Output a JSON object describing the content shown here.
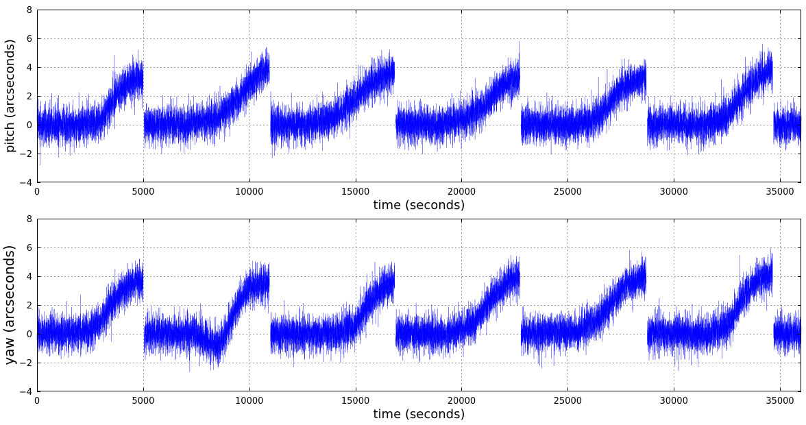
{
  "chart_data": [
    {
      "type": "line",
      "xlabel": "time (seconds)",
      "ylabel": "pitch (arcseconds)",
      "xlim": [
        0,
        36000
      ],
      "ylim": [
        -4,
        8
      ],
      "xticks": [
        0,
        5000,
        10000,
        15000,
        20000,
        25000,
        30000,
        35000
      ],
      "yticks": [
        -4,
        -2,
        0,
        2,
        4,
        6,
        8
      ],
      "grid": true,
      "line_color": "#0000ff",
      "noise_std_arcsec": 0.6,
      "segments": [
        {
          "start": 0,
          "end": 5000,
          "x": [
            0,
            2000,
            3000,
            3500,
            4000,
            4500,
            5000
          ],
          "y": [
            0,
            0,
            0.3,
            1.5,
            2.5,
            3.0,
            3.2
          ]
        },
        {
          "start": 5050,
          "end": 10950,
          "x": [
            5050,
            7000,
            8500,
            9500,
            10000,
            10500,
            10950
          ],
          "y": [
            0,
            0,
            0.5,
            1.8,
            2.8,
            3.5,
            4.0
          ]
        },
        {
          "start": 11000,
          "end": 16850,
          "x": [
            11000,
            13000,
            14000,
            15000,
            15500,
            16000,
            16850
          ],
          "y": [
            0,
            0,
            0.5,
            1.8,
            2.6,
            3.2,
            3.6
          ]
        },
        {
          "start": 16900,
          "end": 22750,
          "x": [
            16900,
            19000,
            20000,
            21000,
            21500,
            22000,
            22750
          ],
          "y": [
            0,
            0,
            0.3,
            1.2,
            2.0,
            2.8,
            3.2
          ]
        },
        {
          "start": 22800,
          "end": 28700,
          "x": [
            22800,
            25500,
            26500,
            27000,
            27500,
            28000,
            28700
          ],
          "y": [
            0,
            0,
            0.5,
            1.5,
            2.5,
            3.0,
            3.2
          ]
        },
        {
          "start": 28750,
          "end": 34650,
          "x": [
            28750,
            31500,
            32500,
            33000,
            33500,
            34000,
            34650
          ],
          "y": [
            0,
            0,
            0.6,
            1.6,
            2.6,
            3.3,
            3.8
          ]
        },
        {
          "start": 34700,
          "end": 36000,
          "x": [
            34700,
            36000
          ],
          "y": [
            0,
            0
          ]
        }
      ]
    },
    {
      "type": "line",
      "xlabel": "time (seconds)",
      "ylabel": "yaw (arcseconds)",
      "xlim": [
        0,
        36000
      ],
      "ylim": [
        -4,
        8
      ],
      "xticks": [
        0,
        5000,
        10000,
        15000,
        20000,
        25000,
        30000,
        35000
      ],
      "yticks": [
        -4,
        -2,
        0,
        2,
        4,
        6,
        8
      ],
      "grid": true,
      "line_color": "#0000ff",
      "noise_std_arcsec": 0.6,
      "segments": [
        {
          "start": 0,
          "end": 5000,
          "x": [
            0,
            2500,
            3000,
            3500,
            4000,
            4500,
            5000
          ],
          "y": [
            0,
            0.2,
            0.8,
            2.0,
            3.0,
            3.5,
            3.6
          ]
        },
        {
          "start": 5050,
          "end": 10950,
          "x": [
            5050,
            7500,
            8500,
            9000,
            9500,
            10000,
            10950
          ],
          "y": [
            0,
            0,
            -1.0,
            0.5,
            2.2,
            3.2,
            3.6
          ]
        },
        {
          "start": 11000,
          "end": 16850,
          "x": [
            11000,
            14000,
            15000,
            15500,
            16000,
            16500,
            16850
          ],
          "y": [
            0,
            0,
            0.6,
            1.8,
            2.8,
            3.4,
            3.6
          ]
        },
        {
          "start": 16900,
          "end": 22750,
          "x": [
            16900,
            19500,
            20500,
            21000,
            21500,
            22000,
            22750
          ],
          "y": [
            0,
            0,
            0.7,
            1.6,
            2.6,
            3.4,
            4.0
          ]
        },
        {
          "start": 22800,
          "end": 28700,
          "x": [
            22800,
            25500,
            26500,
            27000,
            27500,
            28000,
            28700
          ],
          "y": [
            0,
            0.2,
            1.0,
            2.0,
            3.0,
            3.6,
            4.0
          ]
        },
        {
          "start": 28750,
          "end": 34650,
          "x": [
            28750,
            31500,
            32500,
            33000,
            33500,
            34000,
            34650
          ],
          "y": [
            0,
            0,
            0.5,
            1.8,
            3.0,
            3.8,
            4.2
          ]
        },
        {
          "start": 34700,
          "end": 36000,
          "x": [
            34700,
            36000
          ],
          "y": [
            0,
            0
          ]
        }
      ]
    }
  ]
}
